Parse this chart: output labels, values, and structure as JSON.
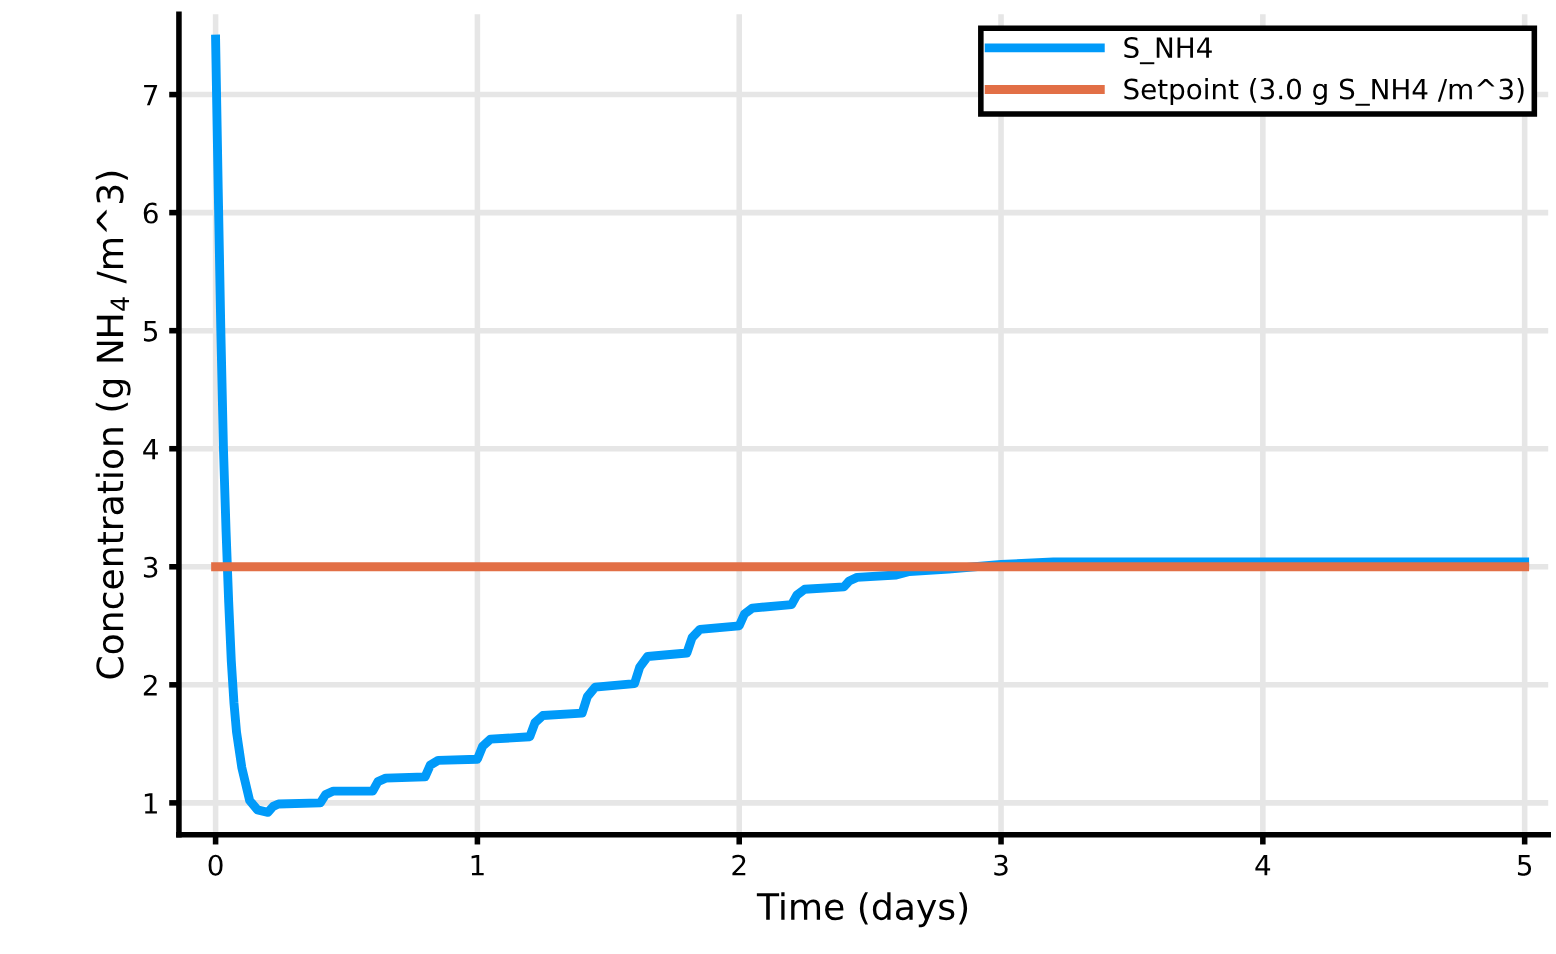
{
  "chart_data": {
    "type": "line",
    "xlabel": "Time (days)",
    "ylabel": "Concentration (g NH$_{4}$ /m^3)",
    "xlim": [
      -0.14,
      5.09
    ],
    "ylim": [
      0.73,
      7.68
    ],
    "xticks": [
      0,
      1,
      2,
      3,
      4,
      5
    ],
    "yticks": [
      1,
      2,
      3,
      4,
      5,
      6,
      7
    ],
    "grid": true,
    "legend": "top right",
    "line_style": "solid",
    "marker": "none",
    "series": [
      {
        "name": "S_NH4",
        "color": "#009af9",
        "x": [
          0,
          0.01,
          0.02,
          0.03,
          0.04,
          0.05,
          0.06,
          0.07,
          0.08,
          0.1,
          0.13,
          0.16,
          0.2,
          0.22,
          0.24,
          0.4,
          0.42,
          0.45,
          0.6,
          0.62,
          0.65,
          0.8,
          0.82,
          0.85,
          1.0,
          1.02,
          1.05,
          1.2,
          1.22,
          1.25,
          1.4,
          1.42,
          1.45,
          1.6,
          1.62,
          1.65,
          1.8,
          1.82,
          1.85,
          2.0,
          2.02,
          2.05,
          2.2,
          2.22,
          2.25,
          2.4,
          2.42,
          2.45,
          2.6,
          2.65,
          2.8,
          2.9,
          3.0,
          3.2,
          3.5,
          4.0,
          4.5,
          5.0
        ],
        "values": [
          7.47,
          6.2,
          5.0,
          4.0,
          3.3,
          2.7,
          2.2,
          1.85,
          1.6,
          1.3,
          1.02,
          0.94,
          0.92,
          0.97,
          0.99,
          1.0,
          1.07,
          1.1,
          1.1,
          1.18,
          1.21,
          1.22,
          1.32,
          1.36,
          1.37,
          1.48,
          1.54,
          1.56,
          1.68,
          1.74,
          1.76,
          1.9,
          1.98,
          2.01,
          2.15,
          2.24,
          2.27,
          2.4,
          2.47,
          2.5,
          2.6,
          2.65,
          2.68,
          2.76,
          2.81,
          2.83,
          2.88,
          2.91,
          2.93,
          2.96,
          2.98,
          3.0,
          3.02,
          3.04,
          3.04,
          3.04,
          3.04,
          3.04
        ]
      },
      {
        "name": "Setpoint (3.0 g S_NH4 /m^3)",
        "color": "#e26f46",
        "x": [
          0,
          5
        ],
        "values": [
          3.0,
          3.0
        ]
      }
    ]
  }
}
